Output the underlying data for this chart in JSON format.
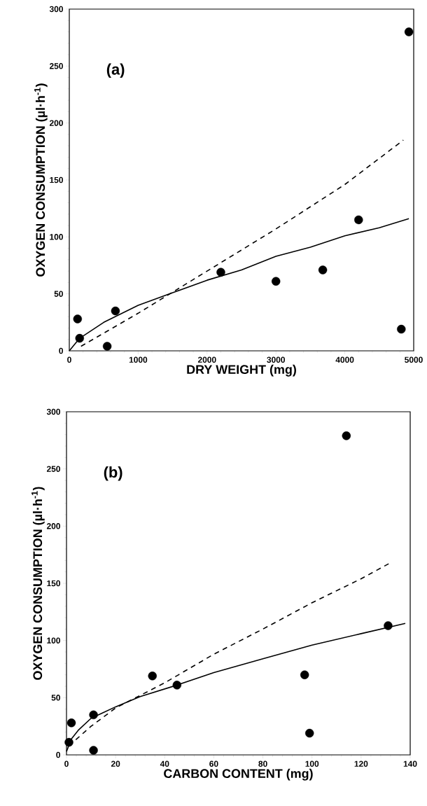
{
  "chart_data": [
    {
      "type": "scatter",
      "title": "(a)",
      "xlabel": "DRY WEIGHT (mg)",
      "ylabel": "OXYGEN CONSUMPTION (µl·h$^{-1}$)",
      "xlim": [
        0,
        5000
      ],
      "ylim": [
        0,
        300
      ],
      "xticks": [
        0,
        1000,
        2000,
        3000,
        4000,
        5000
      ],
      "yticks": [
        0,
        50,
        100,
        150,
        200,
        250,
        300
      ],
      "series": [
        {
          "marker": "circle",
          "color": "#000000",
          "x": [
            120,
            150,
            550,
            670,
            2200,
            3000,
            3680,
            4200,
            4820,
            4930
          ],
          "values": [
            28,
            11,
            4,
            35,
            69,
            61,
            71,
            115,
            19,
            280
          ]
        },
        {
          "type": "line",
          "line_style": "solid",
          "color": "#000000",
          "x": [
            0,
            150,
            500,
            1000,
            1500,
            2000,
            2500,
            3000,
            3500,
            4000,
            4500,
            4930
          ],
          "values": [
            0,
            11,
            25,
            40,
            51,
            62,
            71,
            83,
            91,
            101,
            108,
            116
          ]
        },
        {
          "type": "line",
          "line_style": "dashed",
          "color": "#000000",
          "x": [
            170,
            1000,
            2000,
            3000,
            4000,
            4850
          ],
          "values": [
            4,
            33,
            70,
            107,
            146,
            185
          ]
        }
      ]
    },
    {
      "type": "scatter",
      "title": "(b)",
      "xlabel": "CARBON CONTENT (mg)",
      "ylabel": "OXYGEN CONSUMPTION (µl·h$^{-1}$)",
      "xlim": [
        0,
        140
      ],
      "ylim": [
        0,
        300
      ],
      "xticks": [
        0,
        20,
        40,
        60,
        80,
        100,
        120,
        140
      ],
      "yticks": [
        0,
        50,
        100,
        150,
        200,
        250,
        300
      ],
      "series": [
        {
          "marker": "circle",
          "color": "#000000",
          "x": [
            1,
            2,
            11,
            11,
            35,
            45,
            97,
            99,
            114,
            131
          ],
          "values": [
            11,
            28,
            4,
            35,
            69,
            61,
            70,
            19,
            279,
            113
          ]
        },
        {
          "type": "line",
          "line_style": "solid",
          "color": "#000000",
          "x": [
            0,
            2,
            5,
            10,
            20,
            30,
            45,
            60,
            80,
            100,
            120,
            138
          ],
          "values": [
            3,
            14,
            22,
            32,
            42,
            51,
            61,
            72,
            84,
            96,
            106,
            115
          ]
        },
        {
          "type": "line",
          "line_style": "dashed",
          "color": "#000000",
          "x": [
            1,
            10,
            20,
            40,
            60,
            80,
            100,
            120,
            132
          ],
          "values": [
            8,
            25,
            41,
            63,
            88,
            110,
            133,
            154,
            168
          ]
        }
      ]
    }
  ]
}
